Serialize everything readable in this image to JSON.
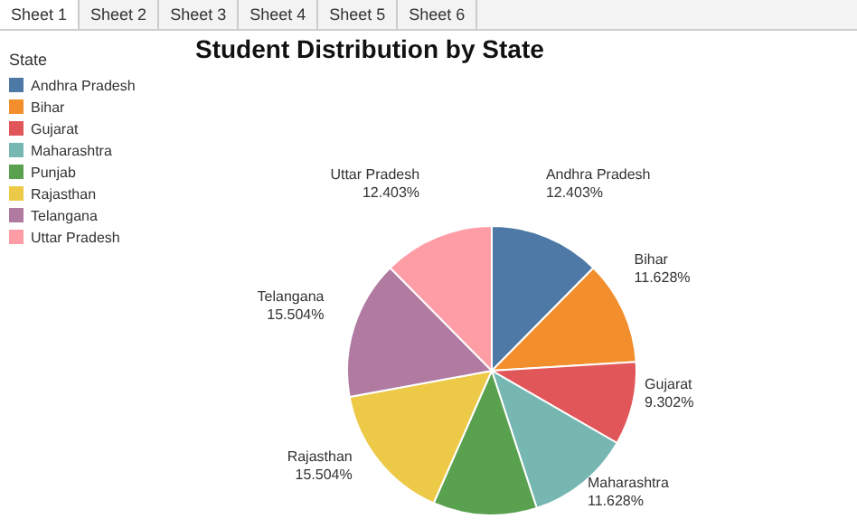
{
  "chart_data": {
    "type": "pie",
    "title": "Student Distribution by State",
    "legend_title": "State",
    "legend": "top left",
    "annotations": [
      "Sheet 1",
      "Sheet 2",
      "Sheet 3",
      "Sheet 4",
      "Sheet 5",
      "Sheet 6"
    ],
    "categories": [
      "Andhra Pradesh",
      "Bihar",
      "Gujarat",
      "Maharashtra",
      "Punjab",
      "Rajasthan",
      "Telangana",
      "Uttar Pradesh"
    ],
    "values": [
      12.403,
      11.628,
      9.302,
      11.628,
      11.628,
      15.504,
      15.504,
      12.403
    ],
    "value_labels": [
      "12.403%",
      "11.628%",
      "9.302%",
      "11.628%",
      null,
      "15.504%",
      "15.504%",
      "12.403%"
    ],
    "colors": [
      "#4e79a7",
      "#f28e2b",
      "#e15759",
      "#76b7b2",
      "#59a14f",
      "#edc948",
      "#b07aa1",
      "#ff9da7"
    ]
  }
}
